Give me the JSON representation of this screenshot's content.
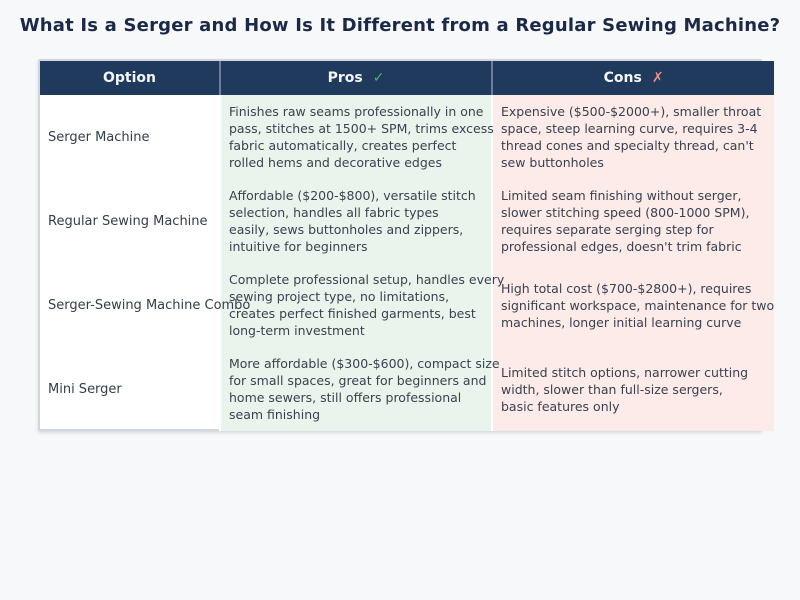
{
  "title": "What Is a Serger and How Is It Different from a Regular Sewing Machine?",
  "colors": {
    "page_background": "#f7f8fa",
    "title_text": "#1b2947",
    "header_background": "#1f3a5c",
    "header_text": "#f3f5f7",
    "pros_background": "#e9f5ec",
    "cons_background": "#fcebe9",
    "option_alt_background": "#eef1f6",
    "check_mark": "#4cb36e",
    "cross_mark": "#ee8c88"
  },
  "chart_data": {
    "type": "table",
    "title": "What Is a Serger and How Is It Different from a Regular Sewing Machine?",
    "columns": [
      "Option",
      "Pros",
      "Cons"
    ],
    "column_marks": [
      "",
      "✓",
      "✗"
    ],
    "legend_position": "none",
    "grid": false,
    "rows": [
      {
        "option": "Serger Machine",
        "pros": "Finishes raw seams professionally in one\npass, stitches at 1500+ SPM, trims excess\nfabric automatically, creates perfect\nrolled hems and decorative edges",
        "cons": "Expensive ($500-$2000+), smaller throat\nspace, steep learning curve, requires 3-4\nthread cones and specialty thread, can't\nsew buttonholes"
      },
      {
        "option": "Regular Sewing Machine",
        "pros": "Affordable ($200-$800), versatile stitch\nselection, handles all fabric types\neasily, sews buttonholes and zippers,\nintuitive for beginners",
        "cons": "Limited seam finishing without serger,\nslower stitching speed (800-1000 SPM),\nrequires separate serging step for\nprofessional edges, doesn't trim fabric"
      },
      {
        "option": "Serger-Sewing Machine Combo",
        "pros": "Complete professional setup, handles every\nsewing project type, no limitations,\ncreates perfect finished garments, best\nlong-term investment",
        "cons": "High total cost ($700-$2800+), requires\nsignificant workspace, maintenance for two\nmachines, longer initial learning curve"
      },
      {
        "option": "Mini Serger",
        "pros": "More affordable ($300-$600), compact size\nfor small spaces, great for beginners and\nhome sewers, still offers professional\nseam finishing",
        "cons": "Limited stitch options, narrower cutting\nwidth, slower than full-size sergers,\nbasic features only"
      }
    ]
  }
}
